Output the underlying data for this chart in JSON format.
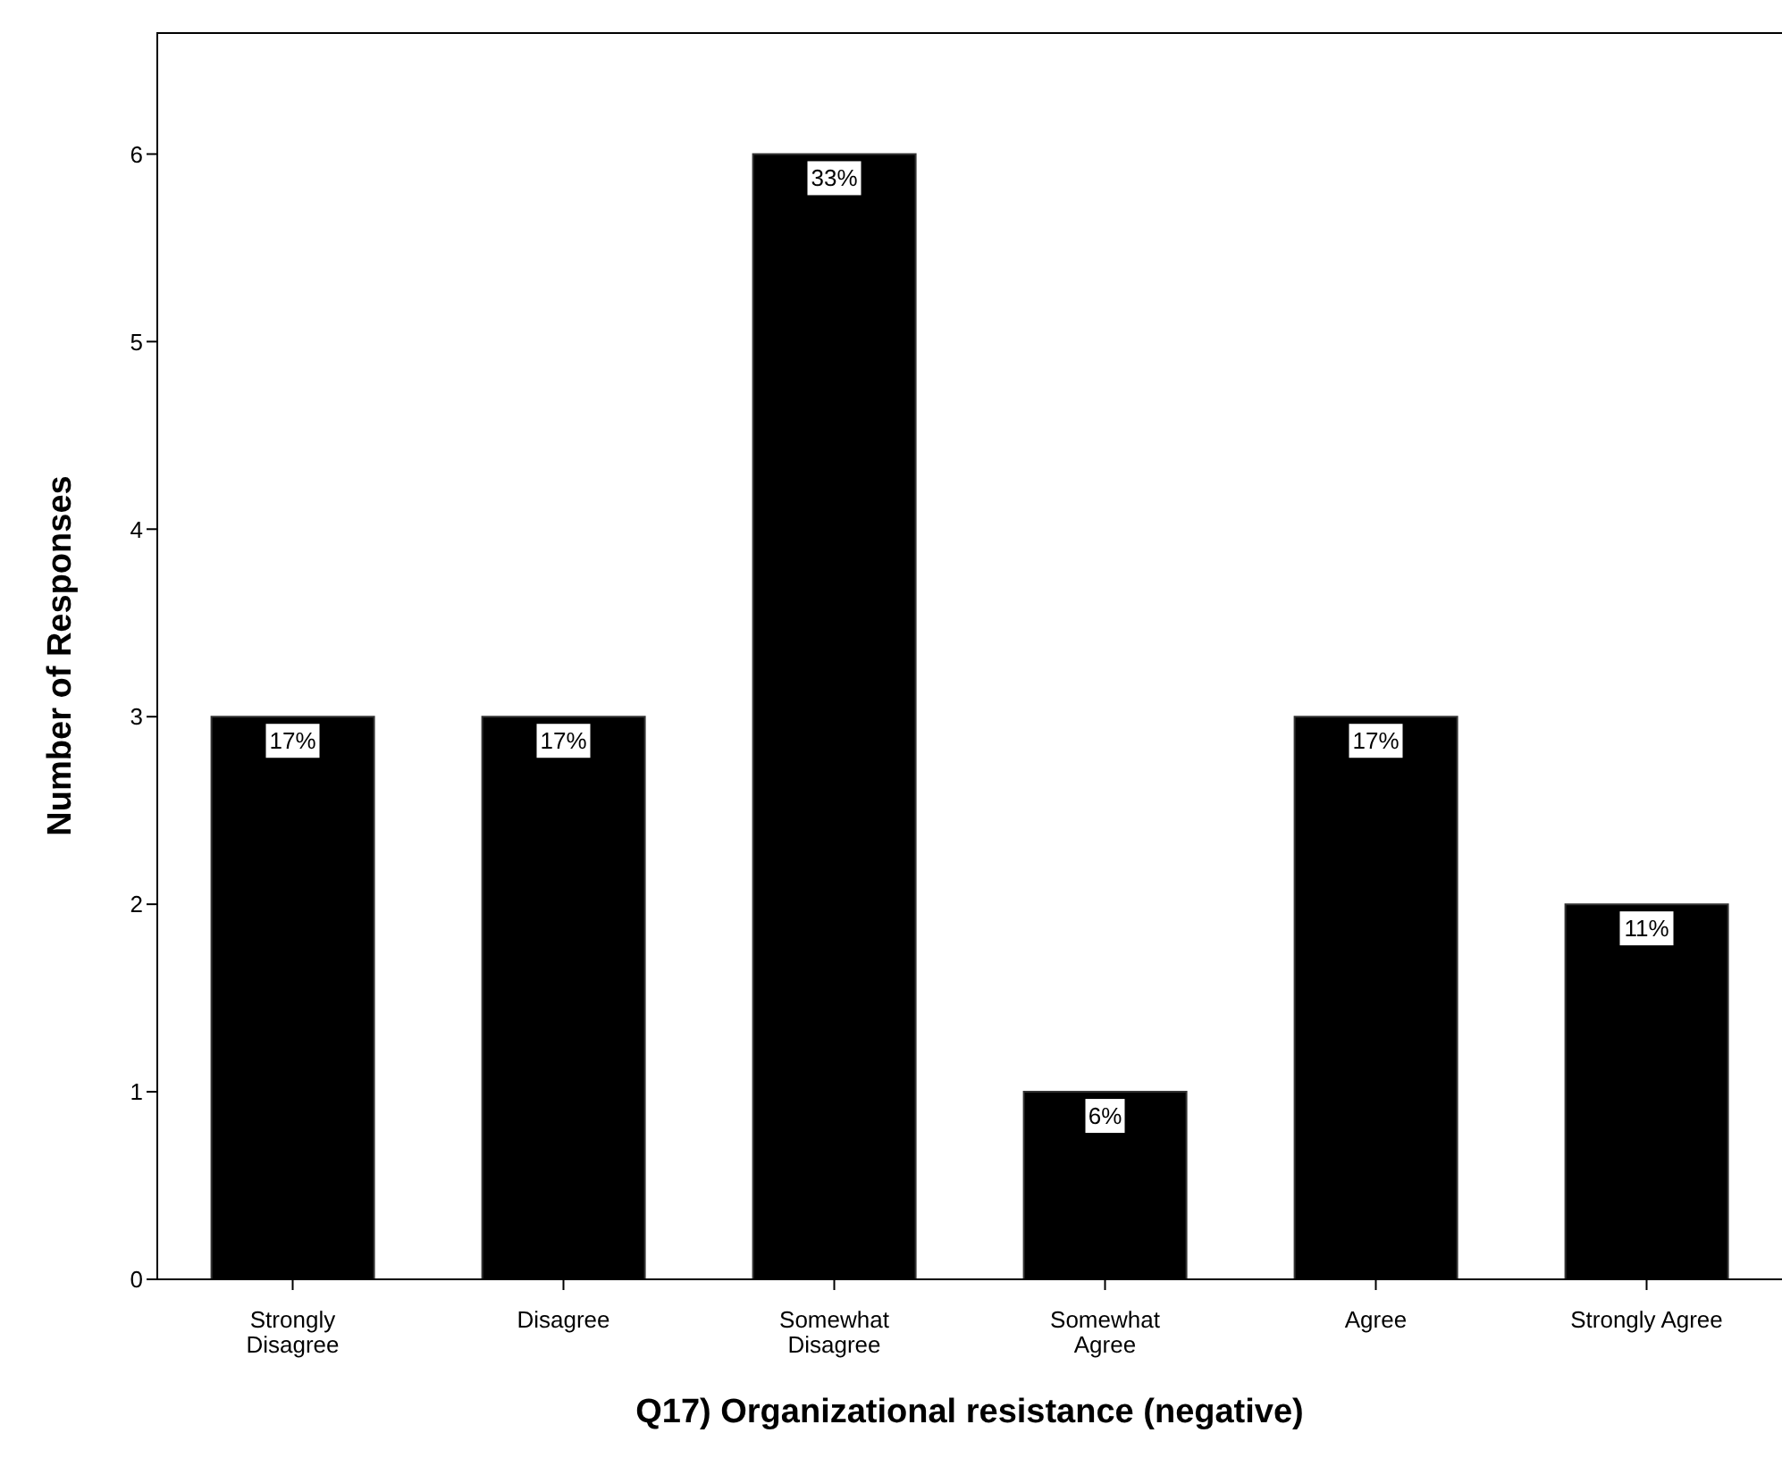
{
  "chart_data": {
    "type": "bar",
    "xlabel": "Q17) Organizational resistance (negative)",
    "ylabel": "Number of Responses",
    "categories": [
      "Strongly Disagree",
      "Disagree",
      "Somewhat Disagree",
      "Somewhat Agree",
      "Agree",
      "Strongly Agree"
    ],
    "values": [
      3,
      3,
      6,
      1,
      3,
      2
    ],
    "color": "#000000",
    "annotations": [
      {
        "text": "17%",
        "x": "Strongly Disagree",
        "y": 3
      },
      {
        "text": "17%",
        "x": "Disagree",
        "y": 3
      },
      {
        "text": "33%",
        "x": "Somewhat Disagree",
        "y": 6
      },
      {
        "text": "6%",
        "x": "Somewhat Agree",
        "y": 1
      },
      {
        "text": "17%",
        "x": "Agree",
        "y": 3
      },
      {
        "text": "11%",
        "x": "Strongly Agree",
        "y": 2
      }
    ],
    "ylim": [
      0,
      6.65
    ],
    "yticks": [
      0,
      1,
      2,
      3,
      4,
      5,
      6
    ],
    "grid": false,
    "legend": false
  }
}
